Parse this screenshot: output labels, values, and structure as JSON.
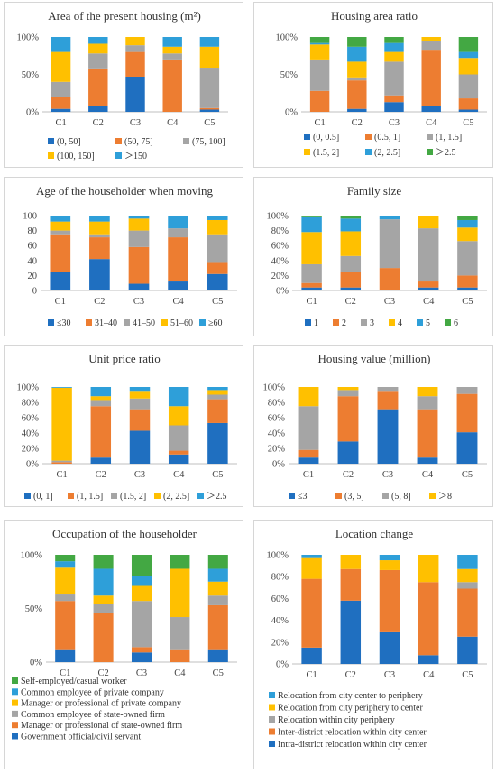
{
  "colors": [
    "#1f6fc0",
    "#ed7d31",
    "#a5a5a5",
    "#ffc000",
    "#2e9fd9",
    "#43a843"
  ],
  "chart_data": [
    {
      "id": "area",
      "type": "bar",
      "stacked": true,
      "title": "Area of the present housing (m²)",
      "categories": [
        "C1",
        "C2",
        "C3",
        "C4",
        "C5"
      ],
      "yticks": [
        "0%",
        "50%",
        "100%"
      ],
      "ylim": [
        0,
        100
      ],
      "series": [
        {
          "name": "(0, 50]",
          "values": [
            4,
            8,
            47,
            0,
            3
          ]
        },
        {
          "name": "(50, 75]",
          "values": [
            16,
            50,
            33,
            70,
            2
          ]
        },
        {
          "name": "(75, 100]",
          "values": [
            20,
            20,
            9,
            8,
            54
          ]
        },
        {
          "name": "(100, 150]",
          "values": [
            40,
            13,
            11,
            9,
            28
          ]
        },
        {
          "name": "＞150",
          "values": [
            20,
            9,
            0,
            13,
            13
          ]
        }
      ]
    },
    {
      "id": "ratio",
      "type": "bar",
      "stacked": true,
      "title": "Housing area ratio",
      "categories": [
        "C1",
        "C2",
        "C3",
        "C4",
        "C5"
      ],
      "yticks": [
        "0%",
        "50%",
        "100%"
      ],
      "ylim": [
        0,
        100
      ],
      "series": [
        {
          "name": "(0,  0.5]",
          "values": [
            0,
            4,
            13,
            8,
            3
          ]
        },
        {
          "name": "(0.5, 1]",
          "values": [
            28,
            38,
            9,
            75,
            15
          ]
        },
        {
          "name": "(1, 1.5]",
          "values": [
            42,
            4,
            45,
            12,
            32
          ]
        },
        {
          "name": "(1.5, 2]",
          "values": [
            20,
            21,
            13,
            5,
            22
          ]
        },
        {
          "name": "(2, 2.5]",
          "values": [
            2,
            20,
            12,
            0,
            8
          ]
        },
        {
          "name": "＞2.5",
          "values": [
            8,
            13,
            8,
            0,
            20
          ]
        }
      ]
    },
    {
      "id": "age",
      "type": "bar",
      "stacked": true,
      "title": "Age of the householder when moving",
      "categories": [
        "C1",
        "C2",
        "C3",
        "C4",
        "C5"
      ],
      "yticks": [
        "0",
        "20",
        "40",
        "60",
        "80",
        "100"
      ],
      "ylim": [
        0,
        100
      ],
      "series": [
        {
          "name": "≤30",
          "values": [
            25,
            42,
            9,
            12,
            22
          ]
        },
        {
          "name": "31–40",
          "values": [
            50,
            29,
            49,
            59,
            16
          ]
        },
        {
          "name": "41–50",
          "values": [
            5,
            4,
            22,
            12,
            37
          ]
        },
        {
          "name": "51–60",
          "values": [
            12,
            17,
            16,
            0,
            19
          ]
        },
        {
          "name": "≥60",
          "values": [
            8,
            8,
            4,
            17,
            6
          ]
        }
      ]
    },
    {
      "id": "family",
      "type": "bar",
      "stacked": true,
      "title": "Family size",
      "categories": [
        "C1",
        "C2",
        "C3",
        "C4",
        "C5"
      ],
      "yticks": [
        "0%",
        "20%",
        "40%",
        "60%",
        "80%",
        "100%"
      ],
      "ylim": [
        0,
        100
      ],
      "series": [
        {
          "name": "1",
          "values": [
            4,
            4,
            0,
            4,
            4
          ]
        },
        {
          "name": "2",
          "values": [
            6,
            21,
            30,
            8,
            16
          ]
        },
        {
          "name": "3",
          "values": [
            25,
            21,
            65,
            71,
            46
          ]
        },
        {
          "name": "4",
          "values": [
            43,
            33,
            0,
            17,
            18
          ]
        },
        {
          "name": "5",
          "values": [
            21,
            17,
            5,
            0,
            10
          ]
        },
        {
          "name": "6",
          "values": [
            1,
            4,
            0,
            0,
            6
          ]
        }
      ]
    },
    {
      "id": "unitprice",
      "type": "bar",
      "stacked": true,
      "title": "Unit price ratio",
      "categories": [
        "C1",
        "C2",
        "C3",
        "C4",
        "C5"
      ],
      "yticks": [
        "0%",
        "20%",
        "40%",
        "60%",
        "80%",
        "100%"
      ],
      "ylim": [
        0,
        100
      ],
      "series": [
        {
          "name": "(0, 1]",
          "values": [
            0,
            8,
            43,
            12,
            53
          ]
        },
        {
          "name": "(1, 1.5]",
          "values": [
            2,
            67,
            28,
            5,
            31
          ]
        },
        {
          "name": "(1.5, 2]",
          "values": [
            2,
            8,
            14,
            33,
            6
          ]
        },
        {
          "name": "(2, 2.5]",
          "values": [
            95,
            5,
            10,
            25,
            6
          ]
        },
        {
          "name": "＞2.5",
          "values": [
            1,
            12,
            5,
            25,
            4
          ]
        }
      ]
    },
    {
      "id": "value",
      "type": "bar",
      "stacked": true,
      "title": "Housing value (million)",
      "categories": [
        "C1",
        "C2",
        "C3",
        "C4",
        "C5"
      ],
      "yticks": [
        "0%",
        "20%",
        "40%",
        "60%",
        "80%",
        "100%"
      ],
      "ylim": [
        0,
        100
      ],
      "series": [
        {
          "name": "≤3",
          "values": [
            8,
            29,
            71,
            8,
            41
          ]
        },
        {
          "name": "(3,  5]",
          "values": [
            10,
            59,
            24,
            63,
            50
          ]
        },
        {
          "name": "(5,  8]",
          "values": [
            57,
            8,
            5,
            17,
            9
          ]
        },
        {
          "name": "＞8",
          "values": [
            25,
            4,
            0,
            12,
            0
          ]
        }
      ]
    },
    {
      "id": "occupation",
      "type": "bar",
      "stacked": true,
      "title": "Occupation of the householder",
      "categories": [
        "C1",
        "C2",
        "C3",
        "C4",
        "C5"
      ],
      "yticks": [
        "0%",
        "50%",
        "100%"
      ],
      "ylim": [
        0,
        100
      ],
      "series": [
        {
          "name": "Government official/civil servant",
          "values": [
            12,
            0,
            9,
            0,
            12
          ]
        },
        {
          "name": "Manager or professional of state-owned firm",
          "values": [
            45,
            46,
            5,
            12,
            41
          ]
        },
        {
          "name": "Common employee of state-owned firm",
          "values": [
            6,
            8,
            43,
            30,
            9
          ]
        },
        {
          "name": "Manager or professional of private company",
          "values": [
            25,
            8,
            14,
            45,
            13
          ]
        },
        {
          "name": "Common employee of private company",
          "values": [
            6,
            25,
            9,
            0,
            12
          ]
        },
        {
          "name": "Self-employed/casual worker",
          "values": [
            6,
            13,
            20,
            13,
            13
          ]
        }
      ]
    },
    {
      "id": "location",
      "type": "bar",
      "stacked": true,
      "title": "Location change",
      "categories": [
        "C1",
        "C2",
        "C3",
        "C4",
        "C5"
      ],
      "yticks": [
        "0%",
        "20%",
        "40%",
        "60%",
        "80%",
        "100%"
      ],
      "ylim": [
        0,
        100
      ],
      "series": [
        {
          "name": "Intra-district relocation within city center",
          "values": [
            15,
            58,
            29,
            8,
            25
          ]
        },
        {
          "name": "Inter-district relocation within city center",
          "values": [
            63,
            29,
            57,
            67,
            44
          ]
        },
        {
          "name": "Relocation within city periphery",
          "values": [
            0,
            0,
            0,
            0,
            6
          ]
        },
        {
          "name": "Relocation from city periphery to center",
          "values": [
            19,
            13,
            9,
            25,
            12
          ]
        },
        {
          "name": "Relocation from city center to periphery",
          "values": [
            3,
            0,
            5,
            0,
            13
          ]
        }
      ]
    }
  ]
}
